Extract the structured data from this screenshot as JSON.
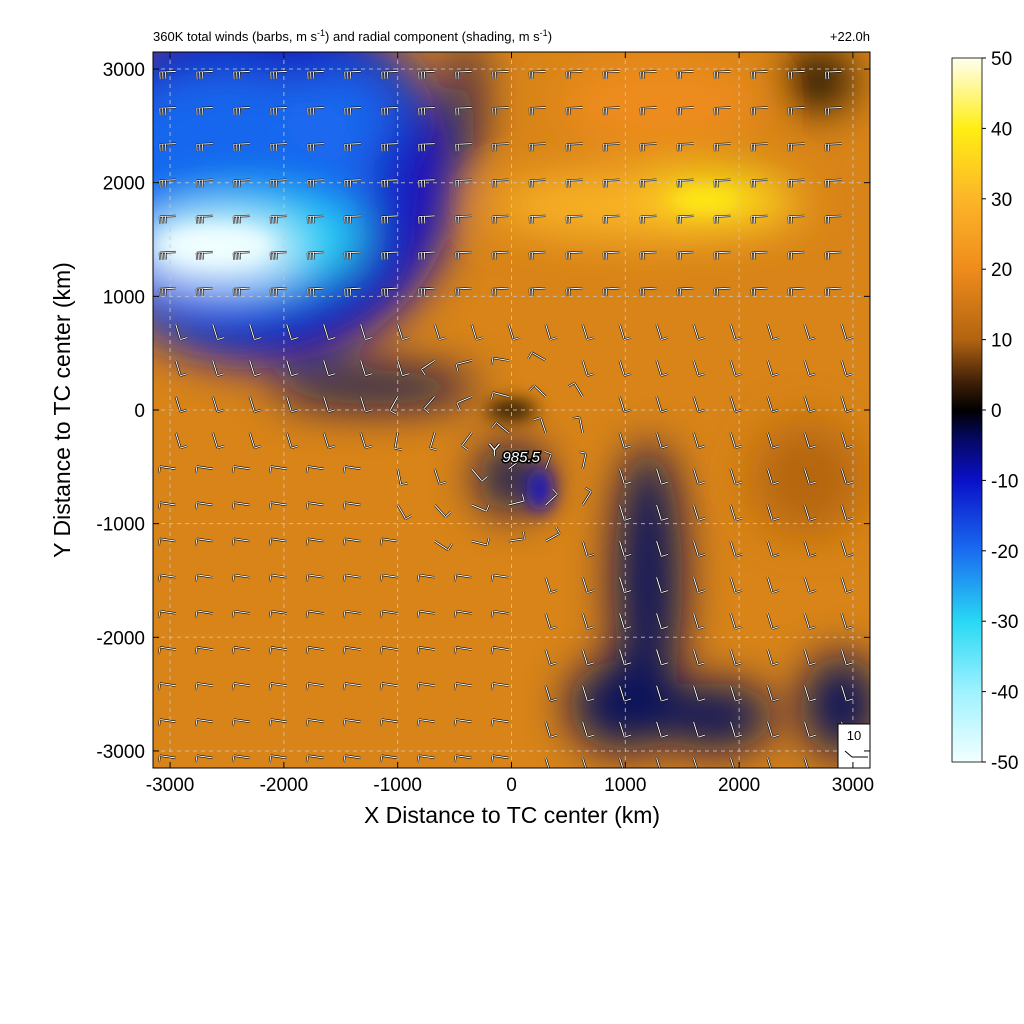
{
  "chart_data": {
    "type": "heatmap",
    "title_left": "360K total winds (barbs, m s",
    "title_left_sup1": "-1",
    "title_left_mid": ") and radial component (shading, m s",
    "title_left_sup2": "-1",
    "title_left_end": ")",
    "title_right": "+22.0h",
    "xlabel": "X Distance to TC center (km)",
    "ylabel": "Y Distance to TC center (km)",
    "xlim": [
      -3150,
      3150
    ],
    "ylim": [
      -3150,
      3150
    ],
    "xticks": [
      -3000,
      -2000,
      -1000,
      0,
      1000,
      2000,
      3000
    ],
    "yticks": [
      -3000,
      -2000,
      -1000,
      0,
      1000,
      2000,
      3000
    ],
    "x_tick_labels": [
      "-3000",
      "-2000",
      "-1000",
      "0",
      "1000",
      "2000",
      "3000"
    ],
    "y_tick_labels": [
      "-3000",
      "-2000",
      "-1000",
      "0",
      "1000",
      "2000",
      "3000"
    ],
    "grid": true,
    "colorbar": {
      "range": [
        -50,
        50
      ],
      "ticks": [
        50,
        40,
        30,
        20,
        10,
        0,
        -10,
        -20,
        -30,
        -40,
        -50
      ],
      "tick_labels": [
        "50",
        "40",
        "30",
        "20",
        "10",
        "0",
        "-10",
        "-20",
        "-30",
        "-40",
        "-50"
      ],
      "stops": [
        {
          "value": -50,
          "color": "#f2ffff"
        },
        {
          "value": -40,
          "color": "#9ff2ff"
        },
        {
          "value": -30,
          "color": "#28d8f4"
        },
        {
          "value": -20,
          "color": "#1a6cf0"
        },
        {
          "value": -10,
          "color": "#0a10c8"
        },
        {
          "value": -4,
          "color": "#050860"
        },
        {
          "value": 0,
          "color": "#000000"
        },
        {
          "value": 4,
          "color": "#402008"
        },
        {
          "value": 10,
          "color": "#b26410"
        },
        {
          "value": 20,
          "color": "#ef8c1c"
        },
        {
          "value": 30,
          "color": "#fcb628"
        },
        {
          "value": 40,
          "color": "#ffee14"
        },
        {
          "value": 50,
          "color": "#fffff0"
        }
      ]
    },
    "tc_center": {
      "x": -150,
      "y": -350,
      "label": "985.5"
    },
    "reference_barb": {
      "label": "10",
      "speed": 10
    },
    "wind_barb_grid": {
      "x_start": -2950,
      "spacing": 325,
      "rows_y_start": 2980,
      "rows_spacing": -318
    }
  }
}
